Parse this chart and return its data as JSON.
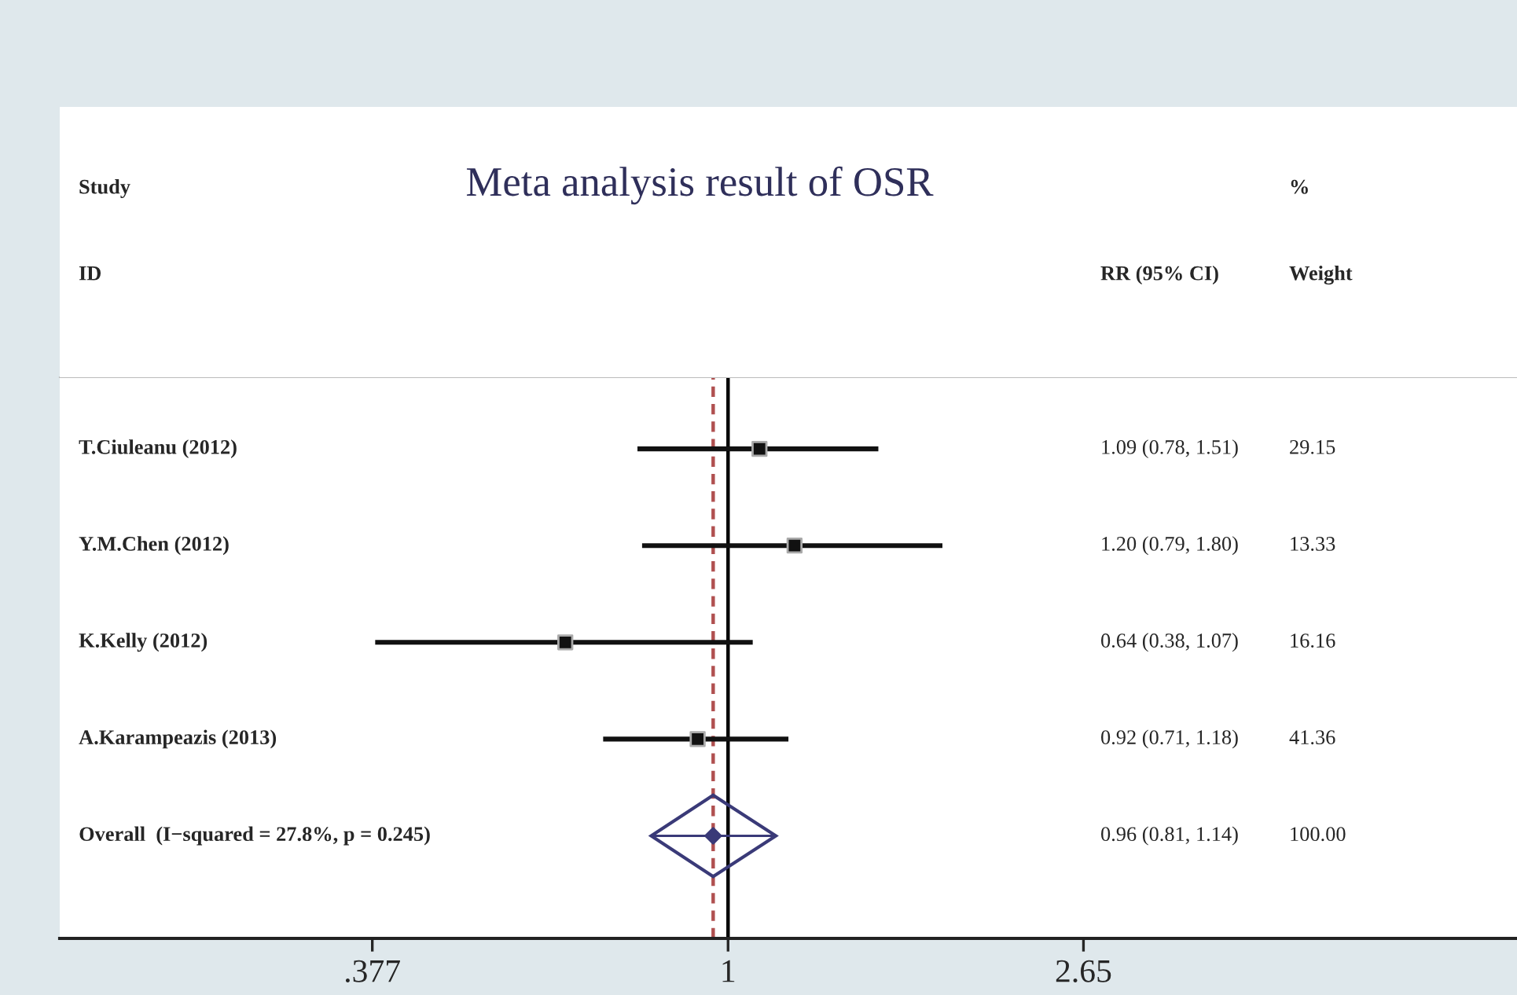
{
  "chart_data": {
    "type": "scatter",
    "orientation": "horizontal",
    "title": "Meta analysis result of OSR",
    "categories": [
      "T.Ciuleanu (2012)",
      "Y.M.Chen (2012)",
      "K.Kelly (2012)",
      "A.Karampeazis (2013)",
      "Overall  (I−squared = 27.8%, p = 0.245)"
    ],
    "series": [
      {
        "marker": "square",
        "color": "#111111",
        "values": [
          1.09,
          1.2,
          0.64,
          0.92,
          null
        ],
        "errors": [
          [
            0.78,
            1.51
          ],
          [
            0.79,
            1.8
          ],
          [
            0.38,
            1.07
          ],
          [
            0.71,
            1.18
          ],
          null
        ]
      },
      {
        "marker": "diamond",
        "color": "#3a3a78",
        "values": [
          null,
          null,
          null,
          null,
          0.96
        ],
        "errors": [
          null,
          null,
          null,
          null,
          [
            0.81,
            1.14
          ]
        ]
      }
    ],
    "annotations": [
      "Study",
      "ID",
      "RR (95% CI)",
      "%",
      "Weight",
      "1.09 (0.78, 1.51)",
      "1.20 (0.79, 1.80)",
      "0.64 (0.38, 1.07)",
      "0.92 (0.71, 1.18)",
      "0.96 (0.81, 1.14)",
      "29.15",
      "13.33",
      "16.16",
      "41.36",
      "100.00"
    ],
    "xlim": [
      0.16,
      8.7
    ],
    "log": "x",
    "xticks": [
      {
        "value": 0.377,
        "label": ".377"
      },
      1,
      2.65
    ],
    "ref_lines": [
      {
        "axis": "x",
        "value": 1,
        "color": "#000000",
        "line_style": "solid"
      },
      {
        "axis": "x",
        "value": 0.96,
        "color": "#b05050",
        "line_style": "dashed"
      }
    ],
    "grid": false,
    "legend": false
  }
}
